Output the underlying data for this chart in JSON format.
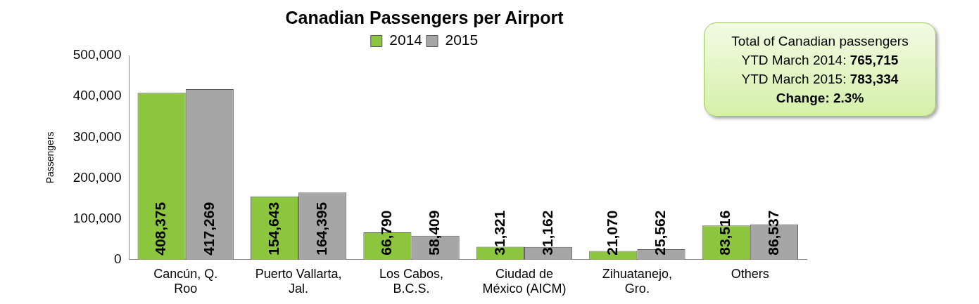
{
  "chart_data": {
    "type": "bar",
    "title": "Canadian Passengers per Airport",
    "ylabel": "Passengers",
    "categories": [
      "Cancún, Q. Roo",
      "Puerto Vallarta, Jal.",
      "Los Cabos, B.C.S.",
      "Ciudad de México (AICM)",
      "Zihuatanejo, Gro.",
      "Others"
    ],
    "series": [
      {
        "name": "2014",
        "color": "#8cc63e",
        "values": [
          408375,
          154643,
          66790,
          31321,
          21070,
          83516
        ]
      },
      {
        "name": "2015",
        "color": "#a6a6a6",
        "values": [
          417269,
          164395,
          58409,
          31162,
          25562,
          86537
        ]
      }
    ],
    "ylim": [
      0,
      500000
    ],
    "yticks": [
      {
        "value": 0,
        "label": "0"
      },
      {
        "value": 100000,
        "label": "100,000"
      },
      {
        "value": 200000,
        "label": "200,000"
      },
      {
        "value": 300000,
        "label": "300,000"
      },
      {
        "value": 400000,
        "label": "400,000"
      },
      {
        "value": 500000,
        "label": "500,000"
      }
    ],
    "value_labels": [
      [
        "408,375",
        "154,643",
        "66,790",
        "31,321",
        "21,070",
        "83,516"
      ],
      [
        "417,269",
        "164,395",
        "58,409",
        "31,162",
        "25,562",
        "86,537"
      ]
    ],
    "legend": "top",
    "grid": false,
    "annotations": [
      "Total of Canadian passengers",
      "YTD March 2014: 765,715",
      "YTD March 2015: 783,334",
      "Change: 2.3%"
    ]
  }
}
